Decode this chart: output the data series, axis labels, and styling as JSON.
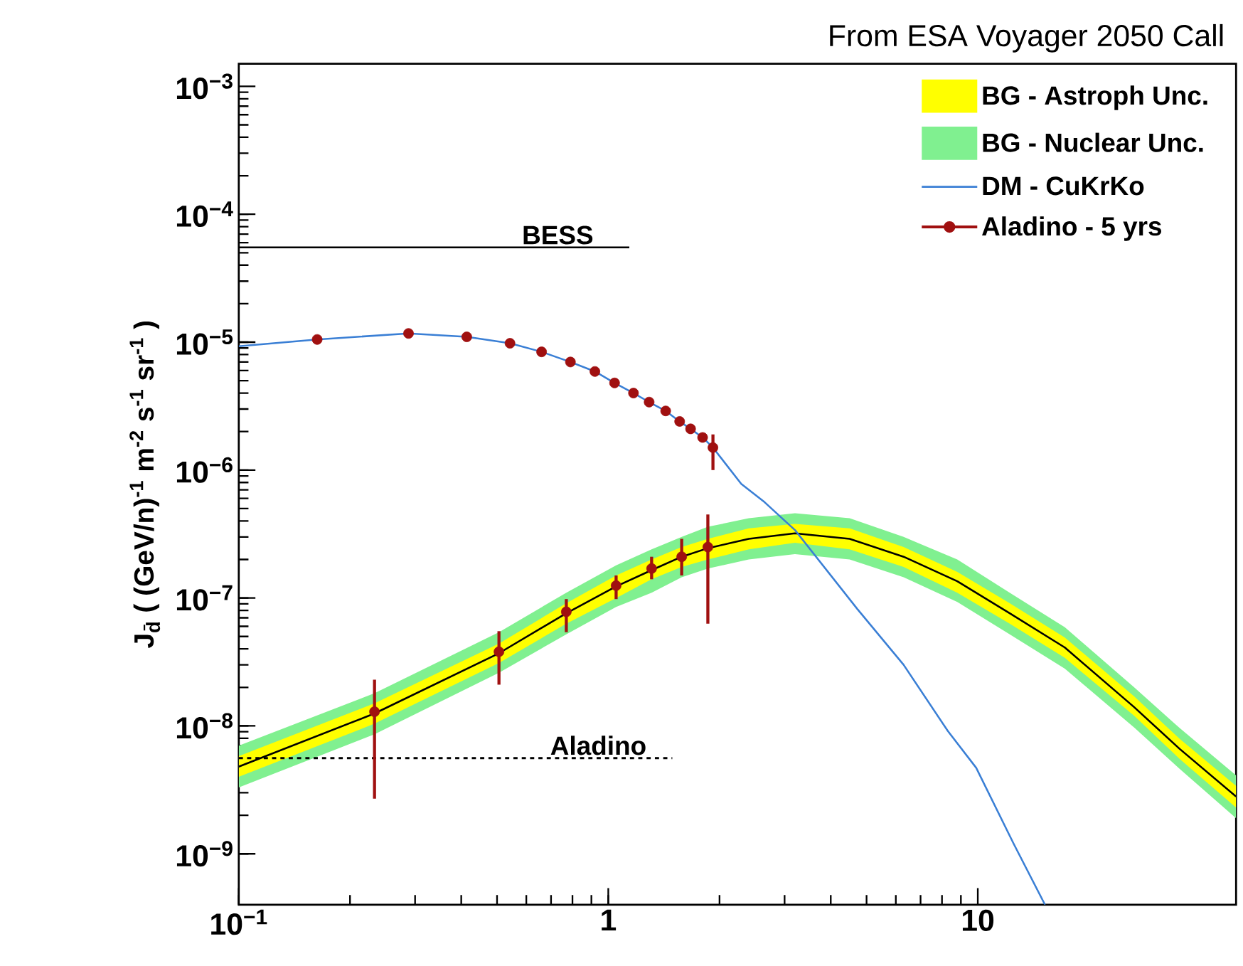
{
  "chart_data": {
    "type": "line",
    "ylabel": "J$_{d̄}$ ( (GeV/n)$^{-1}$ m$^{-2}$ s$^{-1}$ sr$^{-1}$ )",
    "annotations": [
      "From ESA Voyager 2050 Call",
      {
        "text": "BESS",
        "x": 0.73,
        "y": 5.5e-05
      },
      {
        "text": "Aladino",
        "x": 0.94,
        "y": 5.6e-09
      }
    ],
    "log": "xy",
    "xlim": [
      0.1,
      50
    ],
    "ylim": [
      4e-10,
      0.0015
    ],
    "xticks": [
      {
        "value": 0.1,
        "label": "10$^{−1}$"
      },
      1,
      10
    ],
    "yticks": [
      {
        "value": 1e-09,
        "label": "10$^{−9}$"
      },
      {
        "value": 1e-08,
        "label": "10$^{−8}$"
      },
      {
        "value": 1e-07,
        "label": "10$^{−7}$"
      },
      {
        "value": 1e-06,
        "label": "10$^{−6}$"
      },
      {
        "value": 1e-05,
        "label": "10$^{−5}$"
      },
      {
        "value": 0.0001,
        "label": "10$^{−4}$"
      },
      {
        "value": 0.001,
        "label": "10$^{−3}$"
      }
    ],
    "legend": "top right",
    "series": [
      {
        "name": "BG - Nuclear Unc.",
        "color": "#80f090",
        "x": [
          0.1,
          0.233,
          0.506,
          0.77,
          1.05,
          1.31,
          1.58,
          1.86,
          2.4,
          3.2,
          4.5,
          6.3,
          8.8,
          12.2,
          17.2,
          26.5,
          35.2,
          50
        ],
        "values": [
          null,
          null,
          null,
          null,
          null,
          null,
          null,
          null,
          null,
          null,
          null,
          null,
          null,
          null,
          null,
          null,
          null,
          null
        ],
        "lower": [
          3.3e-09,
          8.6e-09,
          2.6e-08,
          5.2e-08,
          8.5e-08,
          1.1e-07,
          1.45e-07,
          1.7e-07,
          2e-07,
          2.2e-07,
          2e-07,
          1.45e-07,
          9.3e-08,
          5.2e-08,
          2.8e-08,
          9.7e-09,
          4.6e-09,
          1.9e-09
        ],
        "upper": [
          7e-09,
          1.8e-08,
          5.4e-08,
          1.1e-07,
          1.8e-07,
          2.4e-07,
          3e-07,
          3.6e-07,
          4.2e-07,
          4.6e-07,
          4.2e-07,
          3e-07,
          2e-07,
          1.1e-07,
          5.9e-08,
          2e-08,
          9.6e-09,
          4.1e-09
        ]
      },
      {
        "name": "BG - Astroph Unc.",
        "color": "#ffff00",
        "x": [
          0.1,
          0.233,
          0.506,
          0.77,
          1.05,
          1.31,
          1.58,
          1.86,
          2.4,
          3.2,
          4.5,
          6.3,
          8.8,
          12.2,
          17.2,
          26.5,
          35.2,
          50
        ],
        "values": [
          null,
          null,
          null,
          null,
          null,
          null,
          null,
          null,
          null,
          null,
          null,
          null,
          null,
          null,
          null,
          null,
          null,
          null
        ],
        "lower": [
          4e-09,
          1.04e-08,
          3.1e-08,
          6.3e-08,
          1e-07,
          1.4e-07,
          1.75e-07,
          2e-07,
          2.4e-07,
          2.7e-07,
          2.4e-07,
          1.75e-07,
          1.1e-07,
          6.3e-08,
          3.4e-08,
          1.2e-08,
          5.5e-09,
          2.3e-09
        ],
        "upper": [
          5.8e-09,
          1.5e-08,
          4.4e-08,
          9.1e-08,
          1.5e-07,
          2e-07,
          2.5e-07,
          2.9e-07,
          3.5e-07,
          3.8e-07,
          3.5e-07,
          2.5e-07,
          1.6e-07,
          9.1e-08,
          4.9e-08,
          1.7e-08,
          7.9e-09,
          3.4e-09
        ]
      },
      {
        "color": "#000000",
        "x": [
          0.1,
          0.233,
          0.506,
          0.77,
          1.05,
          1.31,
          1.58,
          1.86,
          2.4,
          3.2,
          4.5,
          6.3,
          8.8,
          12.2,
          17.2,
          26.5,
          35.2,
          50
        ],
        "values": [
          4.8e-09,
          1.25e-08,
          3.7e-08,
          7.6e-08,
          1.23e-07,
          1.65e-07,
          2.1e-07,
          2.45e-07,
          2.9e-07,
          3.2e-07,
          2.9e-07,
          2.1e-07,
          1.35e-07,
          7.6e-08,
          4.1e-08,
          1.4e-08,
          6.6e-09,
          2.8e-09
        ]
      },
      {
        "name": "DM - CuKrKo",
        "color": "#3a7fd5",
        "x": [
          0.1,
          0.163,
          0.288,
          0.414,
          0.542,
          0.66,
          0.79,
          0.92,
          1.04,
          1.17,
          1.29,
          1.43,
          1.56,
          1.67,
          1.8,
          1.92,
          2.29,
          2.65,
          3.2,
          4.72,
          6.3,
          8.3,
          9.9,
          12.5,
          15.2
        ],
        "values": [
          9.3e-06,
          1.05e-05,
          1.17e-05,
          1.1e-05,
          9.8e-06,
          8.4e-06,
          7e-06,
          5.9e-06,
          4.8e-06,
          4e-06,
          3.4e-06,
          2.9e-06,
          2.4e-06,
          2.1e-06,
          1.8e-06,
          1.5e-06,
          7.8e-07,
          5.6e-07,
          3.4e-07,
          8.2e-08,
          3e-08,
          9.1e-09,
          4.7e-09,
          1.2e-09,
          4e-10
        ]
      },
      {
        "color": "#000000",
        "x": [
          0.1,
          1.14
        ],
        "values": [
          5.5e-05,
          5.5e-05
        ]
      },
      {
        "color": "#000000",
        "line_style": "dotted",
        "x": [
          0.1,
          1.49
        ],
        "values": [
          5.6e-09,
          5.6e-09
        ]
      },
      {
        "name": "Aladino - 5 yrs",
        "type": "scatter",
        "marker": "circle",
        "color": "#a01010",
        "x": [
          0.233,
          0.506,
          0.77,
          1.05,
          1.31,
          1.58,
          1.86
        ],
        "values": [
          1.29e-08,
          3.8e-08,
          7.8e-08,
          1.25e-07,
          1.7e-07,
          2.1e-07,
          2.5e-07
        ],
        "errors": [
          [
            2.7e-09,
            2.3e-08
          ],
          [
            2.1e-08,
            5.5e-08
          ],
          [
            5.4e-08,
            9.8e-08
          ],
          [
            9.8e-08,
            1.5e-07
          ],
          [
            1.4e-07,
            2.1e-07
          ],
          [
            1.5e-07,
            2.9e-07
          ],
          [
            6.3e-08,
            4.5e-07
          ]
        ]
      },
      {
        "type": "scatter",
        "marker": "circle",
        "color": "#a01010",
        "x": [
          0.163,
          0.288,
          0.414,
          0.542,
          0.66,
          0.79,
          0.92,
          1.04,
          1.17,
          1.29,
          1.43,
          1.56,
          1.67,
          1.8,
          1.92
        ],
        "values": [
          1.05e-05,
          1.17e-05,
          1.1e-05,
          9.8e-06,
          8.4e-06,
          7e-06,
          5.9e-06,
          4.8e-06,
          4e-06,
          3.4e-06,
          2.9e-06,
          2.4e-06,
          2.1e-06,
          1.8e-06,
          1.5e-06
        ],
        "errors": [
          null,
          null,
          null,
          null,
          null,
          null,
          null,
          null,
          null,
          null,
          null,
          null,
          null,
          null,
          [
            1e-06,
            1.9e-06
          ]
        ]
      }
    ]
  }
}
